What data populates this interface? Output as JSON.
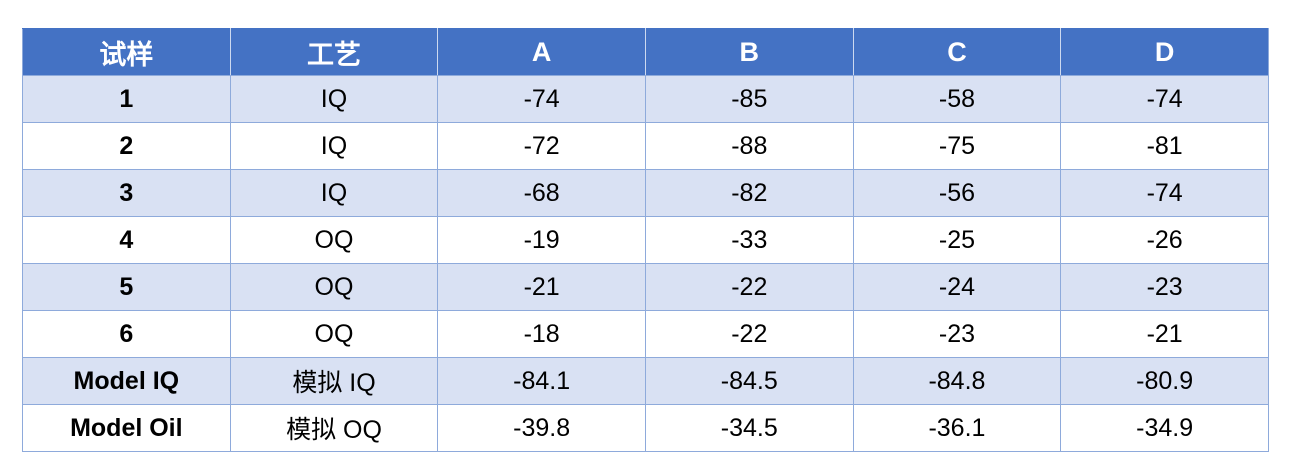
{
  "chart_data": {
    "type": "table",
    "columns": [
      "试样",
      "工艺",
      "A",
      "B",
      "C",
      "D"
    ],
    "rows": [
      [
        "1",
        "IQ",
        "-74",
        "-85",
        "-58",
        "-74"
      ],
      [
        "2",
        "IQ",
        "-72",
        "-88",
        "-75",
        "-81"
      ],
      [
        "3",
        "IQ",
        "-68",
        "-82",
        "-56",
        "-74"
      ],
      [
        "4",
        "OQ",
        "-19",
        "-33",
        "-25",
        "-26"
      ],
      [
        "5",
        "OQ",
        "-21",
        "-22",
        "-24",
        "-23"
      ],
      [
        "6",
        "OQ",
        "-18",
        "-22",
        "-23",
        "-21"
      ],
      [
        "Model IQ",
        "模拟 IQ",
        "-84.1",
        "-84.5",
        "-84.8",
        "-80.9"
      ],
      [
        "Model Oil",
        "模拟 OQ",
        "-39.8",
        "-34.5",
        "-36.1",
        "-34.9"
      ]
    ],
    "layout": {
      "banded_rows": "odd data rows shaded",
      "header_style": "solid accent blue, white bold text",
      "alignment": "all cells centered",
      "first_column_bold": true
    }
  },
  "colors": {
    "header_bg": "#4472C4",
    "header_text": "#FFFFFF",
    "band_bg": "#D9E1F3",
    "row_bg": "#FFFFFF",
    "grid_border": "#8EAADB",
    "body_text": "#000000"
  }
}
